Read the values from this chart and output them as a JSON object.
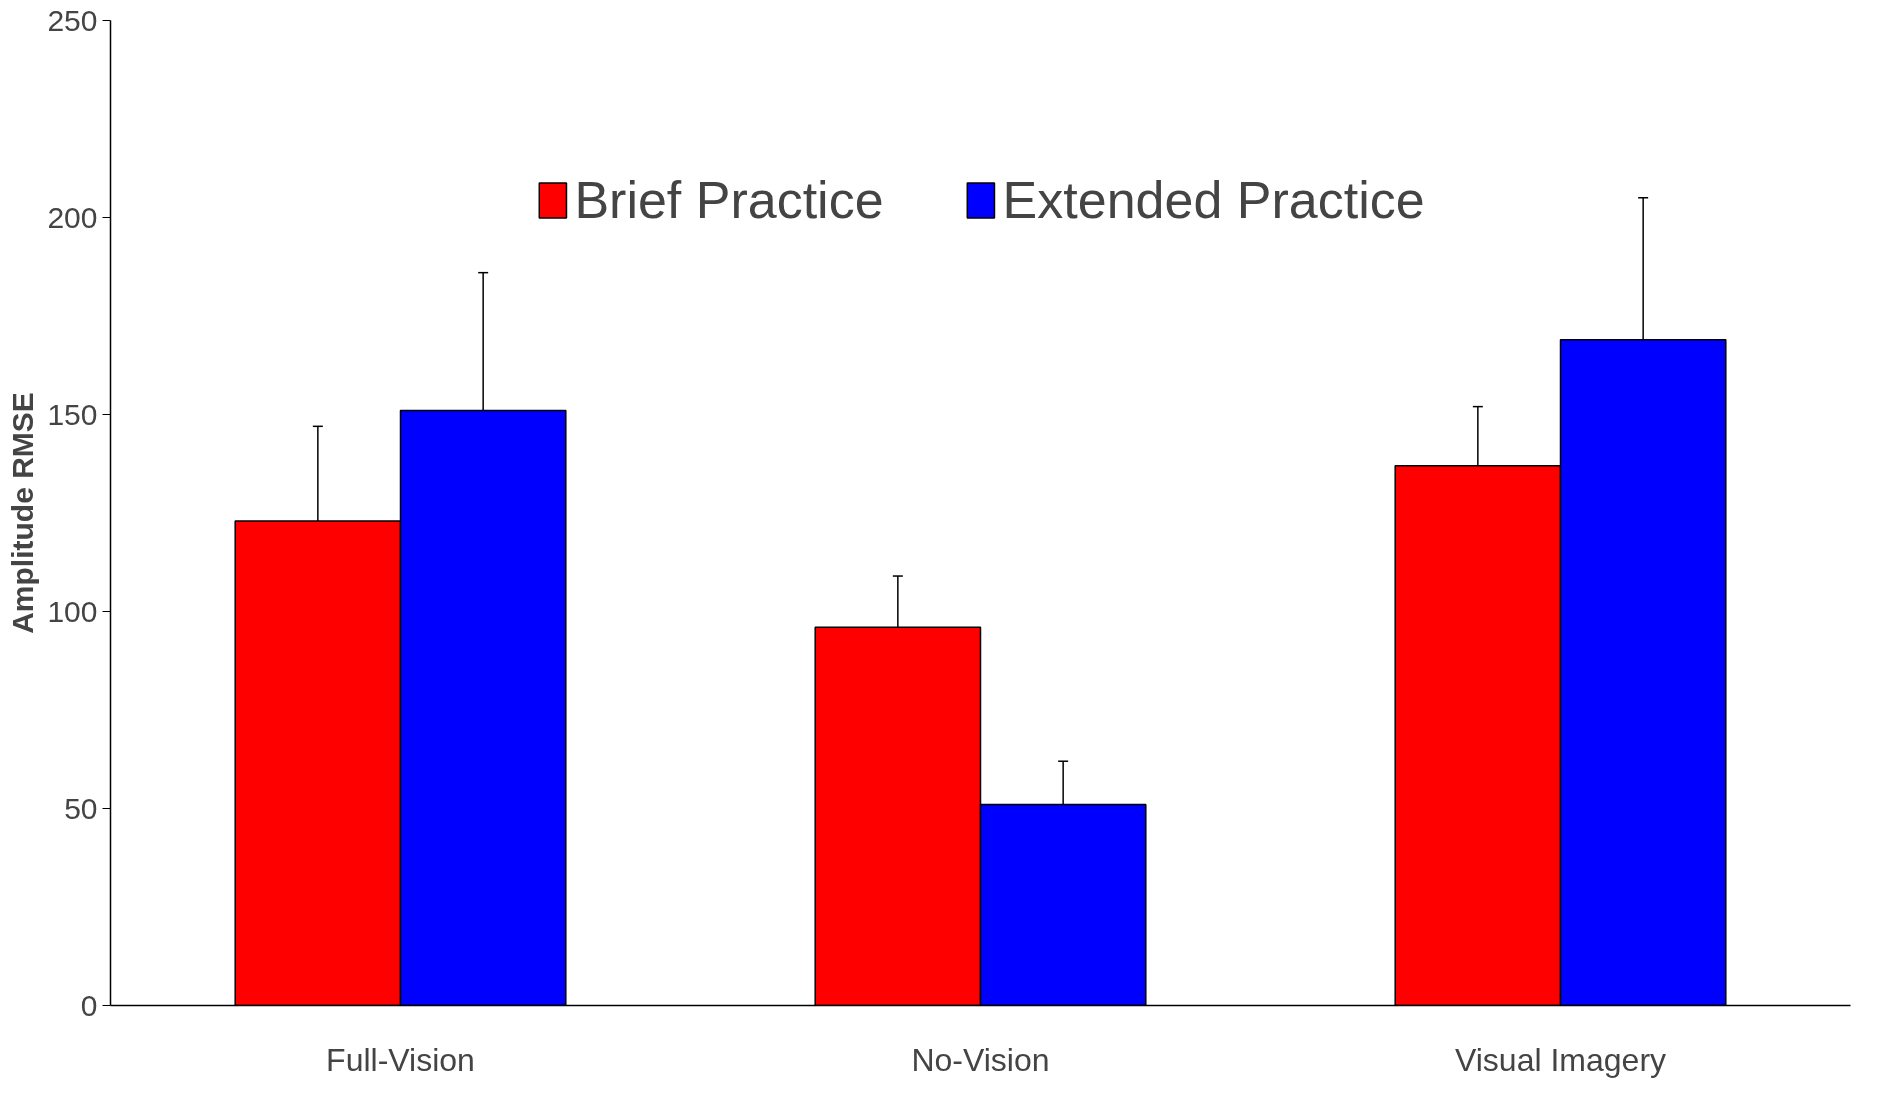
{
  "chart_data": {
    "type": "bar",
    "ylabel": "Amplitude RMSE",
    "categories": [
      "Full-Vision",
      "No-Vision",
      "Visual Imagery"
    ],
    "series": [
      {
        "name": "Brief Practice",
        "color": "#ff0000",
        "values": [
          123,
          96,
          137
        ],
        "errors": [
          [
            123,
            147
          ],
          [
            96,
            109
          ],
          [
            137,
            152
          ]
        ]
      },
      {
        "name": "Extended Practice",
        "color": "#0000ff",
        "values": [
          151,
          51,
          169
        ],
        "errors": [
          [
            151,
            186
          ],
          [
            51,
            62
          ],
          [
            169,
            205
          ]
        ]
      }
    ],
    "ylim": [
      0,
      250
    ],
    "yticks": [
      0,
      50,
      100,
      150,
      200,
      250
    ],
    "grid": false,
    "legend": "top"
  }
}
